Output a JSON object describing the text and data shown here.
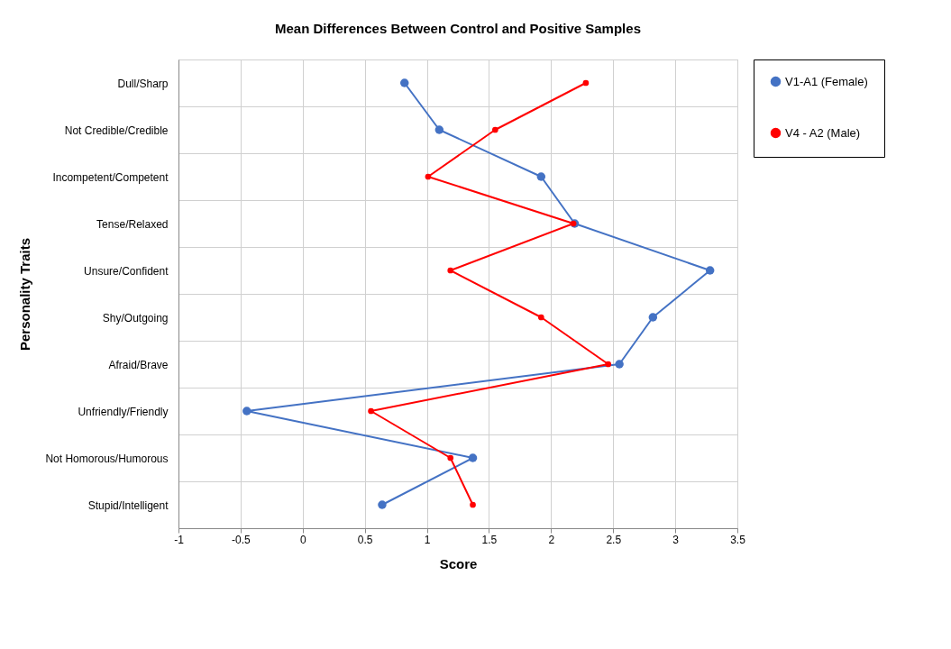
{
  "chart_data": {
    "type": "line",
    "title": "Mean Differences Between Control and Positive Samples",
    "xlabel": "Score",
    "ylabel": "Personality Traits",
    "orientation": "horizontal",
    "categories": [
      "Dull/Sharp",
      "Not Credible/Credible",
      "Incompetent/Competent",
      "Tense/Relaxed",
      "Unsure/Confident",
      "Shy/Outgoing",
      "Afraid/Brave",
      "Unfriendly/Friendly",
      "Not Homorous/Humorous",
      "Stupid/Intelligent"
    ],
    "series": [
      {
        "name": "V1-A1 (Female)",
        "color": "#4472c4",
        "values": [
          0.82,
          1.1,
          1.92,
          2.19,
          3.28,
          2.82,
          2.55,
          -0.45,
          1.37,
          0.64
        ]
      },
      {
        "name": "V4 - A2 (Male)",
        "color": "#ff0000",
        "values": [
          2.28,
          1.55,
          1.01,
          2.18,
          1.19,
          1.92,
          2.46,
          0.55,
          1.19,
          1.37
        ]
      }
    ],
    "xlim": [
      -1,
      3.5
    ],
    "xticks": [
      -1,
      -0.5,
      0,
      0.5,
      1,
      1.5,
      2,
      2.5,
      3,
      3.5
    ],
    "grid": true,
    "legend": "right",
    "marker": "circle",
    "line_style": "solid"
  }
}
